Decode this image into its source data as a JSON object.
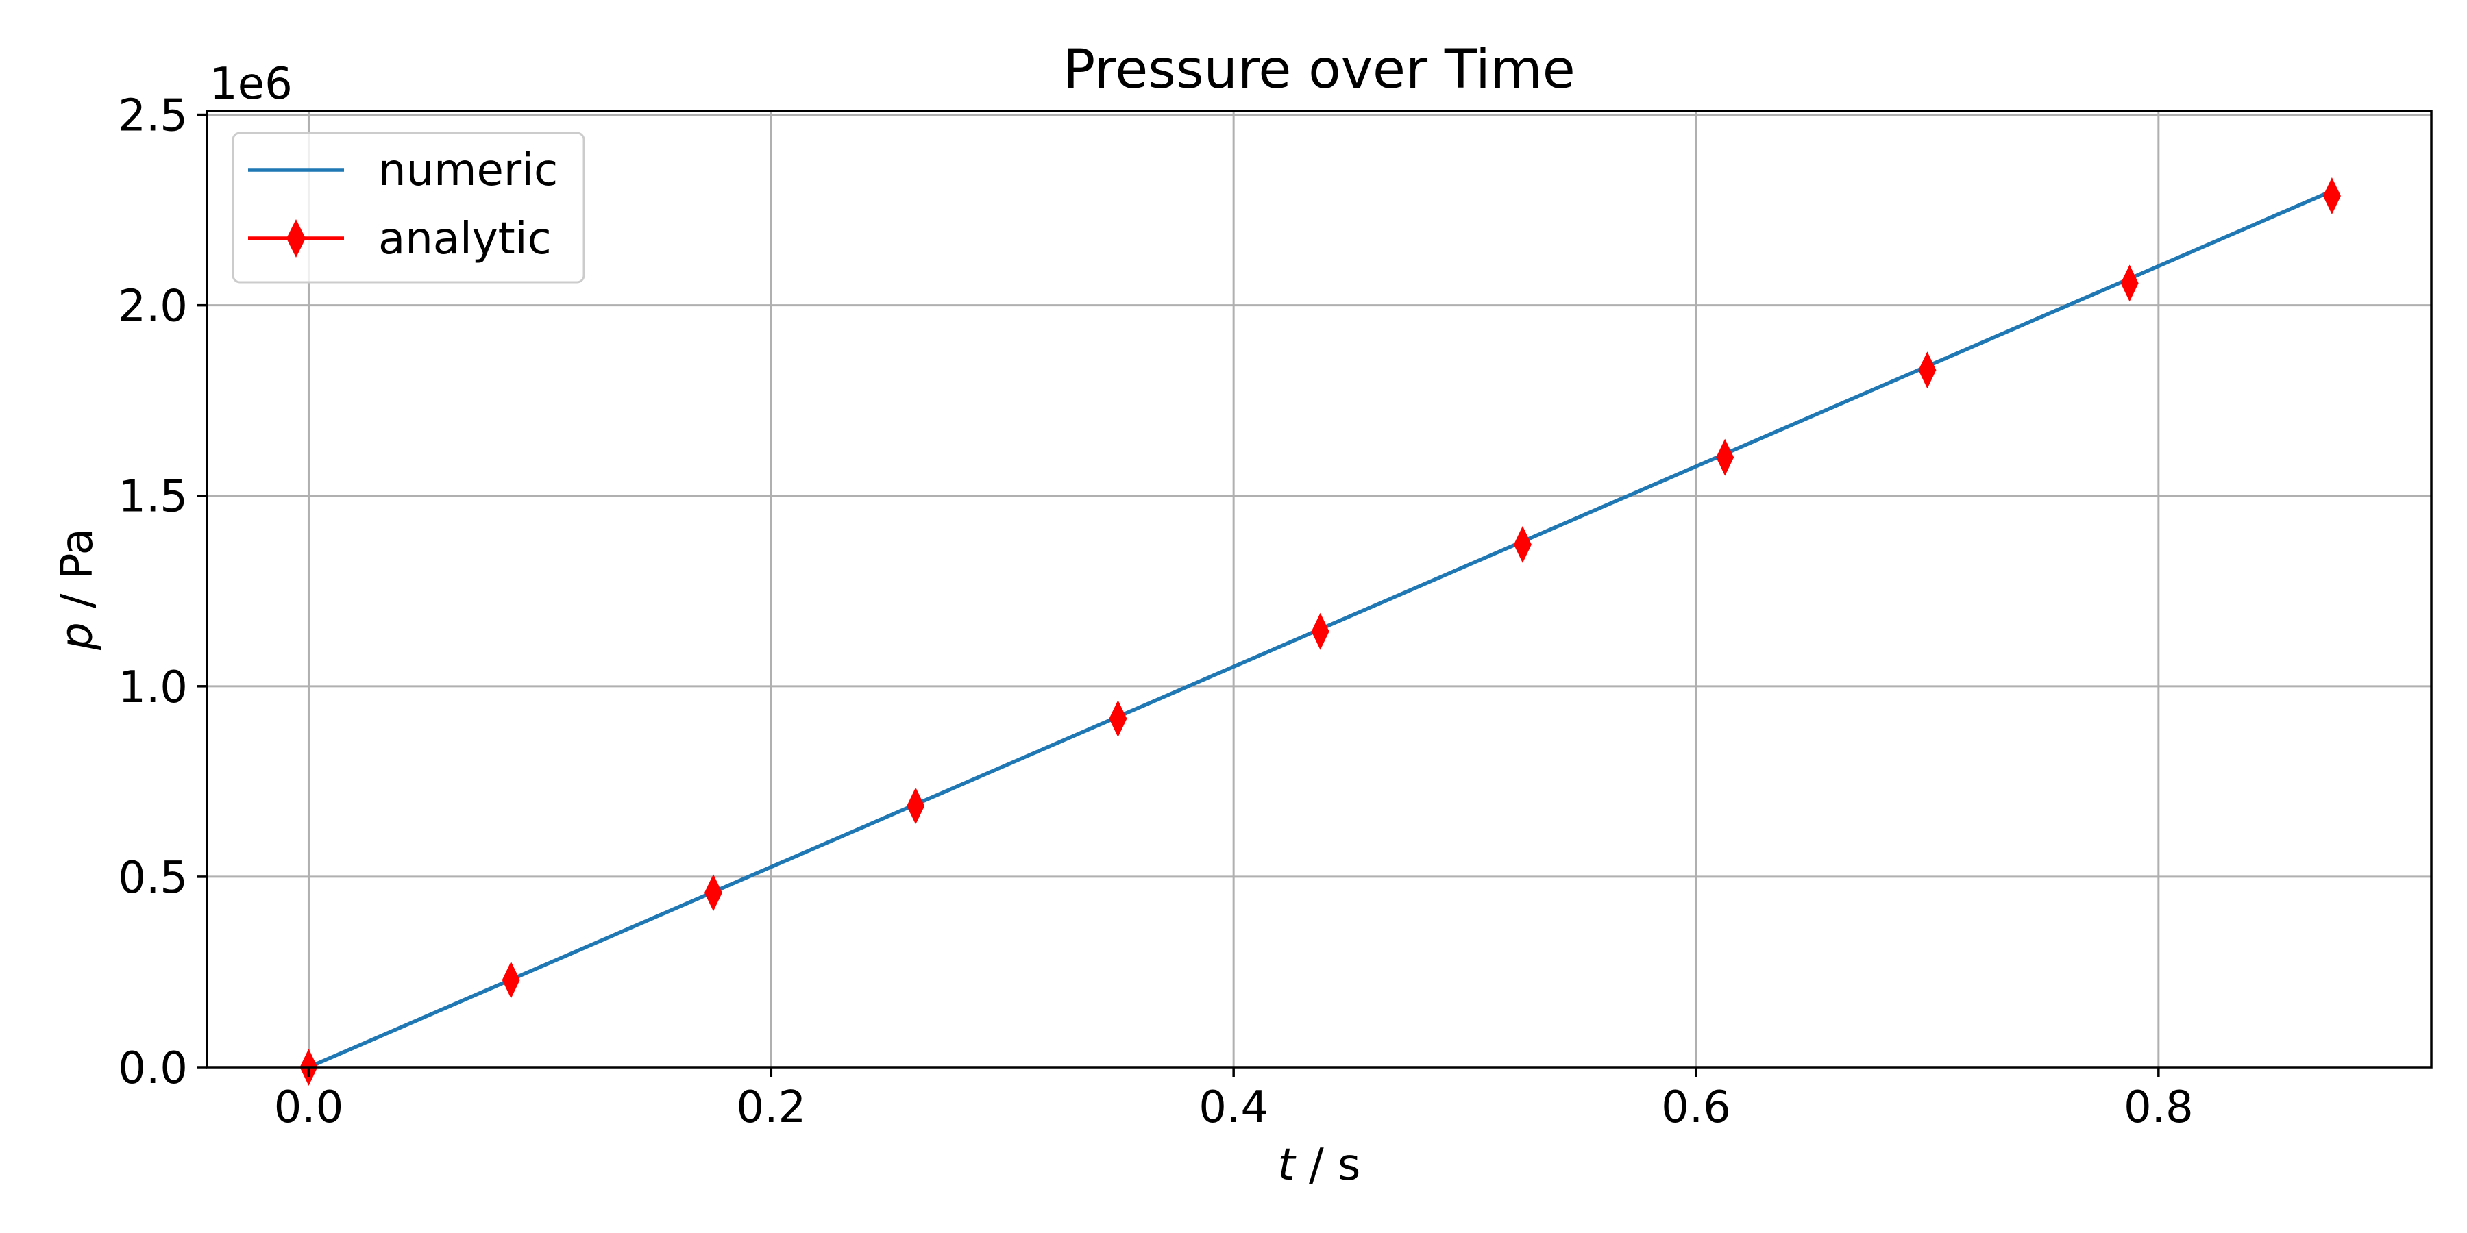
{
  "chart_data": {
    "type": "line",
    "title": "Pressure over Time",
    "xlabel": {
      "var": "t",
      "unit": " / s"
    },
    "ylabel": {
      "var": "p",
      "unit": " / Pa"
    },
    "y_offset_text": "1e6",
    "xlim": [
      -0.044,
      0.918
    ],
    "ylim": [
      0,
      2.51
    ],
    "xticks": [
      0.0,
      0.2,
      0.4,
      0.6,
      0.8
    ],
    "xtick_labels": [
      "0.0",
      "0.2",
      "0.4",
      "0.6",
      "0.8"
    ],
    "yticks": [
      0.0,
      0.5,
      1.0,
      1.5,
      2.0,
      2.5
    ],
    "ytick_labels": [
      "0.0",
      "0.5",
      "1.0",
      "1.5",
      "2.0",
      "2.5"
    ],
    "grid": true,
    "legend_position": "upper-left",
    "series": [
      {
        "name": "numeric",
        "style": "line",
        "color": "#1f77b4",
        "x": [
          0.0,
          0.875
        ],
        "y": [
          0.0,
          2.3
        ]
      },
      {
        "name": "analytic",
        "style": "line-marker",
        "marker": "thin-diamond",
        "color": "#ff0000",
        "x": [
          0.0,
          0.0875,
          0.175,
          0.2625,
          0.35,
          0.4375,
          0.525,
          0.6125,
          0.7,
          0.7875,
          0.875
        ],
        "y": [
          0.0,
          0.229,
          0.458,
          0.686,
          0.915,
          1.144,
          1.372,
          1.601,
          1.83,
          2.058,
          2.287
        ]
      }
    ]
  }
}
